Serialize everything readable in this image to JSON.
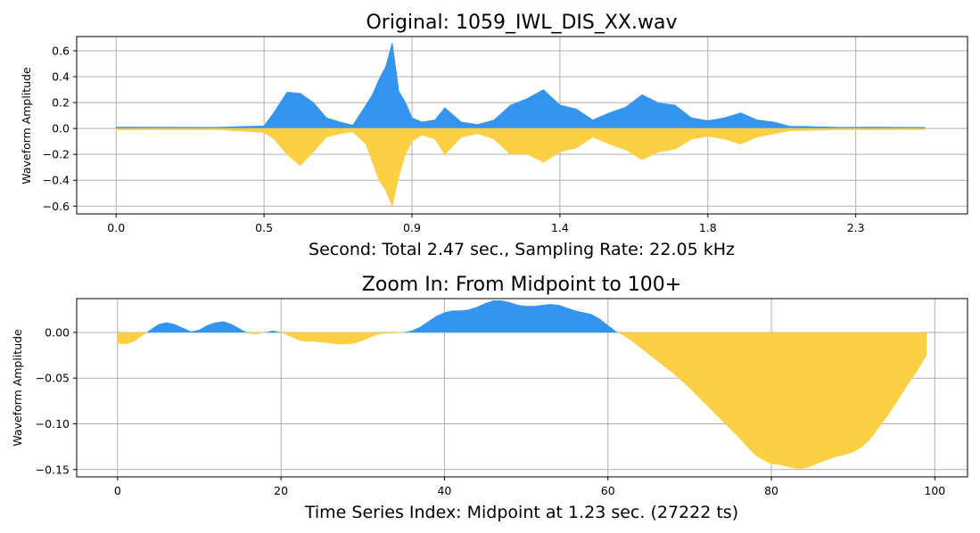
{
  "chart_data": [
    {
      "type": "area",
      "title": "Original: 1059_IWL_DIS_XX.wav",
      "xlabel": "Second: Total 2.47 sec., Sampling Rate: 22.05 kHz",
      "ylabel": "Waveform Amplitude",
      "xlim": [
        -0.12,
        2.59
      ],
      "ylim": [
        -0.66,
        0.71
      ],
      "xticks": [
        0.0,
        0.45,
        0.9,
        1.35,
        1.8,
        2.25
      ],
      "xtick_labels": [
        "0.0",
        "0.5",
        "0.9",
        "1.4",
        "1.8",
        "2.3"
      ],
      "yticks": [
        0.6,
        0.4,
        0.2,
        0.0,
        -0.2,
        -0.4,
        -0.6
      ],
      "ytick_labels": [
        "0.6",
        "0.4",
        "0.2",
        "0.0",
        "−0.2",
        "−0.4",
        "−0.6"
      ],
      "grid": true,
      "colors": {
        "positive": "#3395f0",
        "negative": "#fccf45"
      },
      "x": [
        0.0,
        0.3,
        0.45,
        0.48,
        0.52,
        0.56,
        0.6,
        0.64,
        0.68,
        0.72,
        0.76,
        0.78,
        0.8,
        0.82,
        0.84,
        0.86,
        0.88,
        0.9,
        0.93,
        0.97,
        1.0,
        1.05,
        1.1,
        1.15,
        1.2,
        1.25,
        1.3,
        1.35,
        1.4,
        1.45,
        1.5,
        1.55,
        1.6,
        1.65,
        1.7,
        1.75,
        1.8,
        1.85,
        1.9,
        1.95,
        2.0,
        2.05,
        2.1,
        2.2,
        2.3,
        2.46
      ],
      "series": [
        {
          "values": [
            0.01,
            0.01,
            0.02,
            0.15,
            0.28,
            0.33,
            0.2,
            0.1,
            0.05,
            0.03,
            0.18,
            0.32,
            0.38,
            0.58,
            0.66,
            0.35,
            0.2,
            0.1,
            0.05,
            0.08,
            0.16,
            0.06,
            0.03,
            0.08,
            0.18,
            0.28,
            0.3,
            0.22,
            0.15,
            0.08,
            0.12,
            0.2,
            0.26,
            0.24,
            0.18,
            0.1,
            0.06,
            0.1,
            0.12,
            0.08,
            0.05,
            0.02,
            0.015,
            0.01,
            0.01,
            0.01
          ]
        },
        {
          "values": [
            -0.01,
            -0.01,
            -0.03,
            -0.1,
            -0.2,
            -0.35,
            -0.18,
            -0.08,
            -0.04,
            -0.03,
            -0.12,
            -0.32,
            -0.4,
            -0.58,
            -0.6,
            -0.45,
            -0.2,
            -0.12,
            -0.05,
            -0.1,
            -0.2,
            -0.08,
            -0.04,
            -0.1,
            -0.2,
            -0.24,
            -0.26,
            -0.22,
            -0.15,
            -0.08,
            -0.12,
            -0.2,
            -0.24,
            -0.22,
            -0.16,
            -0.1,
            -0.06,
            -0.1,
            -0.12,
            -0.08,
            -0.04,
            -0.02,
            -0.015,
            -0.01,
            -0.01,
            -0.01
          ]
        }
      ]
    },
    {
      "type": "area",
      "title": "Zoom In: From Midpoint to 100+",
      "xlabel": "Time Series Index: Midpoint at 1.23 sec. (27222 ts)",
      "ylabel": "Waveform Amplitude",
      "xlim": [
        -5,
        104
      ],
      "ylim": [
        -0.158,
        0.037
      ],
      "xticks": [
        0,
        20,
        40,
        60,
        80,
        100
      ],
      "xtick_labels": [
        "0",
        "20",
        "40",
        "60",
        "80",
        "100"
      ],
      "yticks": [
        0.0,
        -0.05,
        -0.1,
        -0.15
      ],
      "ytick_labels": [
        "0.00",
        "−0.05",
        "−0.10",
        "−0.15"
      ],
      "grid": true,
      "colors": {
        "positive": "#3395f0",
        "negative": "#fccf45"
      },
      "x": [
        0,
        1,
        2,
        3,
        4,
        5,
        6,
        7,
        8,
        9,
        10,
        11,
        12,
        13,
        14,
        15,
        16,
        17,
        18,
        19,
        20,
        21,
        22,
        23,
        24,
        25,
        26,
        27,
        28,
        29,
        30,
        31,
        32,
        33,
        34,
        35,
        36,
        37,
        38,
        39,
        40,
        41,
        42,
        43,
        44,
        45,
        46,
        47,
        48,
        49,
        50,
        51,
        52,
        53,
        54,
        55,
        56,
        57,
        58,
        59,
        60,
        61,
        62,
        63,
        64,
        65,
        66,
        67,
        68,
        69,
        70,
        71,
        72,
        73,
        74,
        75,
        76,
        77,
        78,
        79,
        80,
        81,
        82,
        83,
        84,
        85,
        86,
        87,
        88,
        89,
        90,
        91,
        92,
        93,
        94,
        95,
        96,
        97,
        98,
        99
      ],
      "series": [
        {
          "values": [
            -0.012,
            -0.013,
            -0.01,
            -0.004,
            0.003,
            0.009,
            0.011,
            0.009,
            0.005,
            0.001,
            0.003,
            0.008,
            0.011,
            0.012,
            0.009,
            0.004,
            -0.001,
            -0.002,
            0.0,
            0.002,
            0.0,
            -0.004,
            -0.008,
            -0.01,
            -0.01,
            -0.011,
            -0.012,
            -0.013,
            -0.013,
            -0.012,
            -0.009,
            -0.005,
            -0.002,
            -0.001,
            -0.001,
            0.0,
            0.002,
            0.006,
            0.012,
            0.018,
            0.022,
            0.024,
            0.024,
            0.025,
            0.028,
            0.032,
            0.035,
            0.035,
            0.033,
            0.03,
            0.029,
            0.029,
            0.03,
            0.031,
            0.03,
            0.027,
            0.024,
            0.022,
            0.02,
            0.015,
            0.008,
            0.001,
            -0.004,
            -0.01,
            -0.017,
            -0.024,
            -0.031,
            -0.038,
            -0.045,
            -0.053,
            -0.061,
            -0.07,
            -0.079,
            -0.088,
            -0.097,
            -0.106,
            -0.115,
            -0.125,
            -0.134,
            -0.14,
            -0.144,
            -0.145,
            -0.147,
            -0.149,
            -0.149,
            -0.146,
            -0.142,
            -0.139,
            -0.136,
            -0.134,
            -0.131,
            -0.126,
            -0.118,
            -0.106,
            -0.094,
            -0.081,
            -0.067,
            -0.053,
            -0.04,
            -0.025
          ]
        }
      ]
    }
  ]
}
